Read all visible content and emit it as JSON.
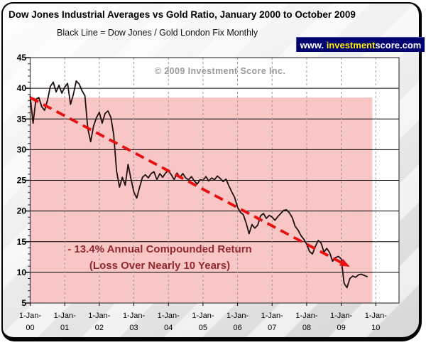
{
  "header": {
    "title": "Dow Jones Industrial Averages vs Gold Ratio, January 2000 to October 2009",
    "subtitle": "Black Line = Dow Jones / Gold London Fix Monthly",
    "badge": {
      "www": "www. ",
      "highlight": "investment",
      "rest": "score.com"
    }
  },
  "watermark": "© 2009 Investment Score Inc.",
  "annotation": {
    "line1": "- 13.4% Annual Compounded Return",
    "line2": "(Loss Over Nearly 10 Years)"
  },
  "colors": {
    "badge_bg": "#000070",
    "badge_text": "#ffffff",
    "badge_highlight": "#ffee00",
    "annotation_red": "#93292e",
    "watermark_gray": "#9a9a9a"
  },
  "chart_data": {
    "type": "line",
    "title": "Dow Jones Industrial Averages vs Gold Ratio, January 2000 to October 2009",
    "grid": true,
    "legend_position": "none",
    "x_axis": {
      "tick_prefix": "1-Jan-",
      "ticks": [
        "00",
        "01",
        "02",
        "03",
        "04",
        "05",
        "06",
        "07",
        "08",
        "09",
        "10"
      ],
      "range_years": [
        0,
        10.67
      ]
    },
    "y_axis": {
      "ticks": [
        45,
        40,
        35,
        30,
        25,
        20,
        15,
        10,
        5
      ],
      "range": [
        5,
        45
      ],
      "minor_step": 1
    },
    "series": [
      {
        "name": "Dow Jones / Gold London Fix Monthly",
        "start": "Jan-2000",
        "interval": "monthly",
        "color": "#1e1010",
        "values": [
          38.7,
          34.3,
          38.2,
          38.5,
          37.0,
          36.4,
          38.0,
          40.3,
          41.0,
          39.4,
          40.5,
          39.2,
          40.2,
          40.8,
          37.4,
          39.0,
          41.2,
          40.7,
          39.6,
          38.8,
          33.5,
          31.3,
          33.8,
          35.2,
          36.1,
          34.3,
          35.9,
          36.3,
          35.3,
          32.5,
          26.5,
          23.9,
          25.5,
          24.2,
          27.6,
          25.2,
          23.1,
          22.1,
          23.9,
          25.5,
          25.9,
          25.4,
          26.1,
          26.4,
          25.1,
          26.1,
          25.5,
          26.2,
          26.6,
          25.9,
          25.1,
          26.2,
          25.5,
          26.1,
          25.4,
          25.1,
          25.6,
          24.9,
          24.4,
          25.1,
          25.0,
          25.6,
          24.9,
          25.4,
          25.1,
          25.7,
          25.3,
          24.8,
          25.2,
          24.1,
          23.1,
          22.2,
          20.6,
          19.8,
          19.4,
          18.0,
          16.3,
          17.8,
          17.2,
          17.7,
          19.2,
          19.6,
          18.8,
          19.3,
          19.0,
          18.5,
          19.1,
          19.6,
          20.1,
          20.2,
          19.7,
          18.9,
          17.5,
          16.9,
          16.0,
          15.4,
          14.6,
          13.4,
          13.0,
          14.2,
          15.2,
          14.8,
          13.3,
          13.9,
          13.2,
          11.8,
          12.4,
          12.6,
          12.2,
          8.2,
          7.5,
          9.0,
          9.4,
          9.2,
          9.6,
          9.7,
          9.5,
          9.3
        ]
      }
    ],
    "trendline": {
      "style": "dashed",
      "color": "#e80f0f",
      "start": {
        "year_offset": 0,
        "value": 38.5
      },
      "end": {
        "year_offset": 9.1,
        "value": 11.3
      },
      "arrow": {
        "year_offset": 9.25,
        "value": 10.9
      }
    },
    "loss_region": {
      "x_years": [
        0,
        9.9
      ],
      "y_values": [
        5,
        38.5
      ],
      "color": "#f9c6c6"
    },
    "style_colors": {
      "h_grid": "#000000",
      "v_grid": "#999999",
      "plot_border": "#404040"
    }
  }
}
